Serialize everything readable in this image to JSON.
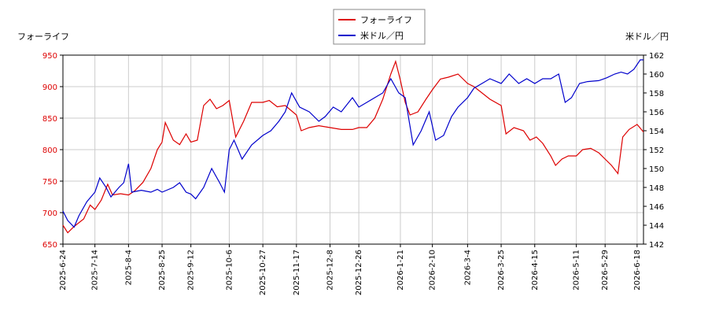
{
  "chart_data": {
    "type": "line",
    "ylabel": "フォーライフ",
    "y2label": "米ドル／円",
    "xlim": [
      "2025-06-24",
      "2026-06-22"
    ],
    "xticks": [
      {
        "value": "2025-06-24",
        "label": "2025-6-24"
      },
      {
        "value": "2025-07-14",
        "label": "2025-7-14"
      },
      {
        "value": "2025-08-04",
        "label": "2025-8-4"
      },
      {
        "value": "2025-08-25",
        "label": "2025-8-25"
      },
      {
        "value": "2025-09-12",
        "label": "2025-9-12"
      },
      {
        "value": "2025-10-06",
        "label": "2025-10-6"
      },
      {
        "value": "2025-10-27",
        "label": "2025-10-27"
      },
      {
        "value": "2025-11-17",
        "label": "2025-11-17"
      },
      {
        "value": "2025-12-08",
        "label": "2025-12-8"
      },
      {
        "value": "2025-12-26",
        "label": "2025-12-26"
      },
      {
        "value": "2026-01-21",
        "label": "2026-1-21"
      },
      {
        "value": "2026-02-10",
        "label": "2026-2-10"
      },
      {
        "value": "2026-03-04",
        "label": "2026-3-4"
      },
      {
        "value": "2026-03-25",
        "label": "2026-3-25"
      },
      {
        "value": "2026-04-15",
        "label": "2026-4-15"
      },
      {
        "value": "2026-05-11",
        "label": "2026-5-11"
      },
      {
        "value": "2026-05-29",
        "label": "2026-5-29"
      },
      {
        "value": "2026-06-18",
        "label": "2026-6-18"
      }
    ],
    "ylim": [
      650,
      950
    ],
    "yticks": [
      650,
      700,
      750,
      800,
      850,
      900,
      950
    ],
    "y2lim": [
      142,
      162
    ],
    "y2ticks": [
      142,
      144,
      146,
      148,
      150,
      152,
      154,
      156,
      158,
      160,
      162
    ],
    "grid": true,
    "series": [
      {
        "name": "フォーライフ",
        "color": "#dd0000",
        "x": [
          "2025-06-24",
          "2025-06-27",
          "2025-07-01",
          "2025-07-07",
          "2025-07-11",
          "2025-07-14",
          "2025-07-18",
          "2025-07-22",
          "2025-07-25",
          "2025-07-30",
          "2025-08-04",
          "2025-08-08",
          "2025-08-13",
          "2025-08-18",
          "2025-08-22",
          "2025-08-25",
          "2025-08-27",
          "2025-09-01",
          "2025-09-05",
          "2025-09-09",
          "2025-09-12",
          "2025-09-16",
          "2025-09-20",
          "2025-09-24",
          "2025-09-28",
          "2025-10-02",
          "2025-10-06",
          "2025-10-10",
          "2025-10-15",
          "2025-10-20",
          "2025-10-27",
          "2025-10-31",
          "2025-11-05",
          "2025-11-10",
          "2025-11-17",
          "2025-11-20",
          "2025-11-25",
          "2025-12-01",
          "2025-12-08",
          "2025-12-15",
          "2025-12-22",
          "2025-12-26",
          "2025-12-31",
          "2026-01-05",
          "2026-01-10",
          "2026-01-15",
          "2026-01-18",
          "2026-01-21",
          "2026-01-24",
          "2026-01-27",
          "2026-02-01",
          "2026-02-06",
          "2026-02-10",
          "2026-02-15",
          "2026-02-20",
          "2026-02-26",
          "2026-03-04",
          "2026-03-08",
          "2026-03-13",
          "2026-03-18",
          "2026-03-25",
          "2026-03-28",
          "2026-04-02",
          "2026-04-08",
          "2026-04-12",
          "2026-04-16",
          "2026-04-20",
          "2026-04-25",
          "2026-04-28",
          "2026-05-02",
          "2026-05-06",
          "2026-05-11",
          "2026-05-15",
          "2026-05-20",
          "2026-05-25",
          "2026-05-29",
          "2026-06-02",
          "2026-06-06",
          "2026-06-09",
          "2026-06-13",
          "2026-06-18",
          "2026-06-22"
        ],
        "values": [
          680,
          668,
          678,
          690,
          712,
          705,
          720,
          745,
          728,
          730,
          728,
          735,
          748,
          770,
          800,
          812,
          843,
          815,
          808,
          825,
          812,
          815,
          870,
          880,
          865,
          870,
          878,
          820,
          845,
          875,
          875,
          878,
          868,
          870,
          855,
          830,
          835,
          838,
          835,
          832,
          832,
          835,
          835,
          850,
          880,
          920,
          940,
          910,
          875,
          855,
          860,
          880,
          895,
          912,
          915,
          920,
          905,
          900,
          890,
          880,
          870,
          825,
          835,
          830,
          815,
          820,
          810,
          790,
          775,
          785,
          790,
          790,
          800,
          802,
          795,
          785,
          775,
          762,
          820,
          832,
          840,
          828
        ]
      },
      {
        "name": "米ドル／円",
        "color": "#0000cc",
        "axis": "y2",
        "x": [
          "2025-06-24",
          "2025-06-27",
          "2025-07-01",
          "2025-07-04",
          "2025-07-09",
          "2025-07-14",
          "2025-07-17",
          "2025-07-21",
          "2025-07-24",
          "2025-07-29",
          "2025-08-01",
          "2025-08-04",
          "2025-08-06",
          "2025-08-12",
          "2025-08-18",
          "2025-08-22",
          "2025-08-25",
          "2025-09-01",
          "2025-09-05",
          "2025-09-09",
          "2025-09-12",
          "2025-09-15",
          "2025-09-20",
          "2025-09-25",
          "2025-09-30",
          "2025-10-03",
          "2025-10-06",
          "2025-10-09",
          "2025-10-14",
          "2025-10-20",
          "2025-10-27",
          "2025-11-01",
          "2025-11-06",
          "2025-11-10",
          "2025-11-14",
          "2025-11-19",
          "2025-11-25",
          "2025-12-01",
          "2025-12-05",
          "2025-12-10",
          "2025-12-15",
          "2025-12-22",
          "2025-12-26",
          "2025-12-31",
          "2026-01-05",
          "2026-01-10",
          "2026-01-15",
          "2026-01-20",
          "2026-01-24",
          "2026-01-29",
          "2026-02-03",
          "2026-02-08",
          "2026-02-12",
          "2026-02-17",
          "2026-02-22",
          "2026-02-26",
          "2026-03-04",
          "2026-03-08",
          "2026-03-13",
          "2026-03-18",
          "2026-03-25",
          "2026-03-30",
          "2026-04-05",
          "2026-04-10",
          "2026-04-15",
          "2026-04-20",
          "2026-04-25",
          "2026-04-30",
          "2026-05-04",
          "2026-05-08",
          "2026-05-13",
          "2026-05-18",
          "2026-05-25",
          "2026-05-30",
          "2026-06-04",
          "2026-06-08",
          "2026-06-12",
          "2026-06-16",
          "2026-06-20",
          "2026-06-22"
        ],
        "values": [
          145.5,
          144.5,
          143.8,
          145,
          146.5,
          147.5,
          149,
          148,
          147,
          148,
          148.5,
          150.5,
          147.5,
          147.7,
          147.5,
          147.8,
          147.5,
          148,
          148.5,
          147.5,
          147.3,
          146.8,
          148,
          150,
          148.5,
          147.5,
          152,
          153,
          151,
          152.5,
          153.5,
          154,
          155,
          156,
          158,
          156.5,
          156,
          155,
          155.5,
          156.5,
          156,
          157.5,
          156.5,
          157,
          157.5,
          158,
          159.5,
          158,
          157.5,
          152.5,
          154,
          156,
          153,
          153.5,
          155.5,
          156.5,
          157.5,
          158.5,
          159,
          159.5,
          159,
          160,
          159,
          159.5,
          159,
          159.5,
          159.5,
          160,
          157,
          157.5,
          159,
          159.2,
          159.3,
          159.6,
          160,
          160.2,
          160,
          160.5,
          161.5,
          161.5
        ]
      }
    ]
  }
}
